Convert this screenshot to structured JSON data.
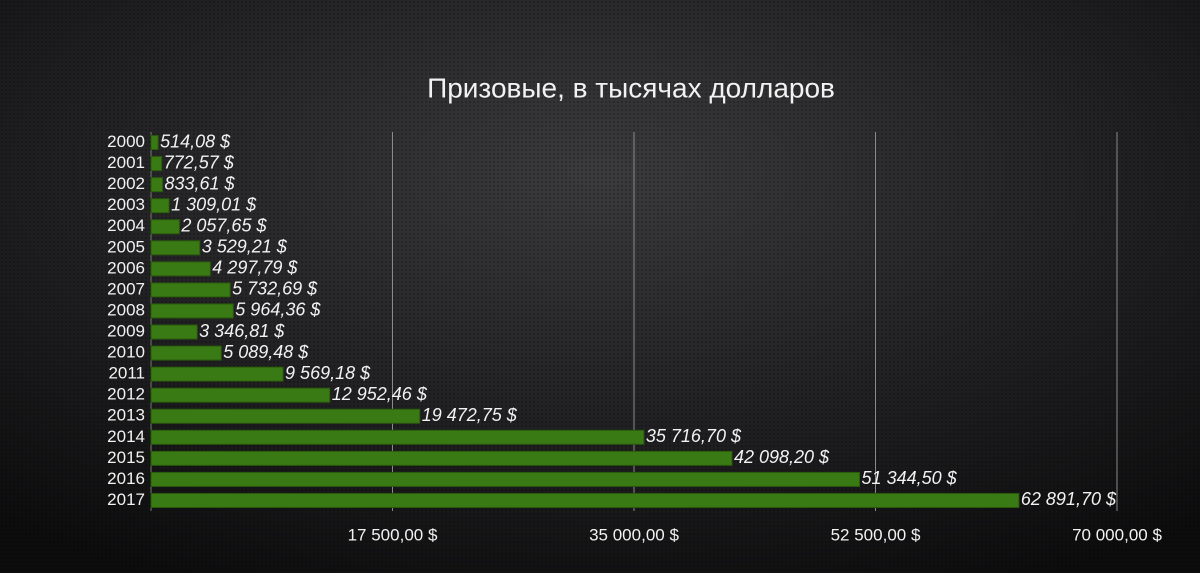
{
  "chart_data": {
    "type": "bar",
    "orientation": "horizontal",
    "title": "Призовые, в тысячах долларов",
    "categories": [
      "2000",
      "2001",
      "2002",
      "2003",
      "2004",
      "2005",
      "2006",
      "2007",
      "2008",
      "2009",
      "2010",
      "2011",
      "2012",
      "2013",
      "2014",
      "2015",
      "2016",
      "2017"
    ],
    "values": [
      514.08,
      772.57,
      833.61,
      1309.01,
      2057.65,
      3529.21,
      4297.79,
      5732.69,
      5964.36,
      3346.81,
      5089.48,
      9569.18,
      12952.46,
      19472.75,
      35716.7,
      42098.2,
      51344.5,
      62891.7
    ],
    "value_labels": [
      "514,08 $",
      "772,57 $",
      "833,61 $",
      "1 309,01 $",
      "2 057,65 $",
      "3 529,21 $",
      "4 297,79 $",
      "5 732,69 $",
      "5 964,36 $",
      "3 346,81 $",
      "5 089,48 $",
      "9 569,18 $",
      "12 952,46 $",
      "19 472,75 $",
      "35 716,70 $",
      "42 098,20 $",
      "51 344,50 $",
      "62 891,70 $"
    ],
    "color": "#3a7a14",
    "xlim": [
      0,
      70000
    ],
    "xticks": [
      {
        "value": 17500,
        "label": "17 500,00 $"
      },
      {
        "value": 35000,
        "label": "35 000,00 $"
      },
      {
        "value": 52500,
        "label": "52 500,00 $"
      },
      {
        "value": 70000,
        "label": "70 000,00 $"
      }
    ],
    "grid": true
  }
}
